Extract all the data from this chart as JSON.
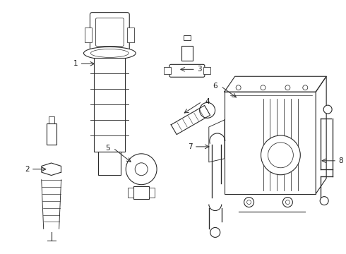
{
  "bg_color": "#ffffff",
  "line_color": "#2a2a2a",
  "line_width": 0.8,
  "label_color": "#1a1a1a",
  "label_fontsize": 7.5,
  "fig_width": 4.9,
  "fig_height": 3.6,
  "dpi": 100
}
